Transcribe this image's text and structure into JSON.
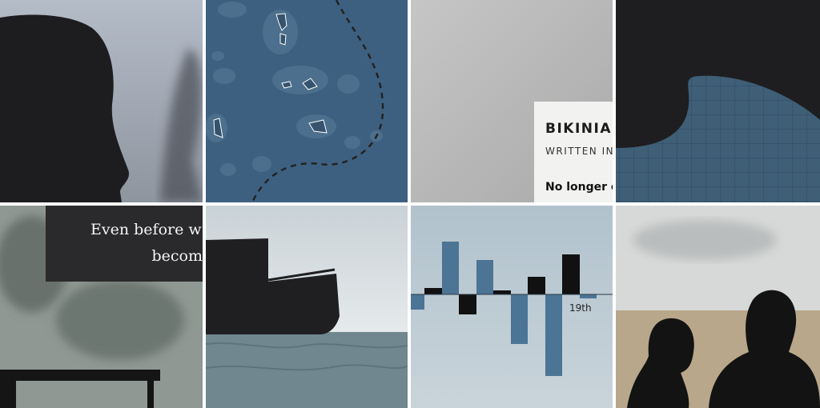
{
  "card": {
    "title": "BIKINIAN",
    "subtitle": "WRITTEN IN",
    "body": "No longer c"
  },
  "caption": {
    "line1": "Even before w",
    "line2": "becom"
  },
  "chart_label": "19th"
}
